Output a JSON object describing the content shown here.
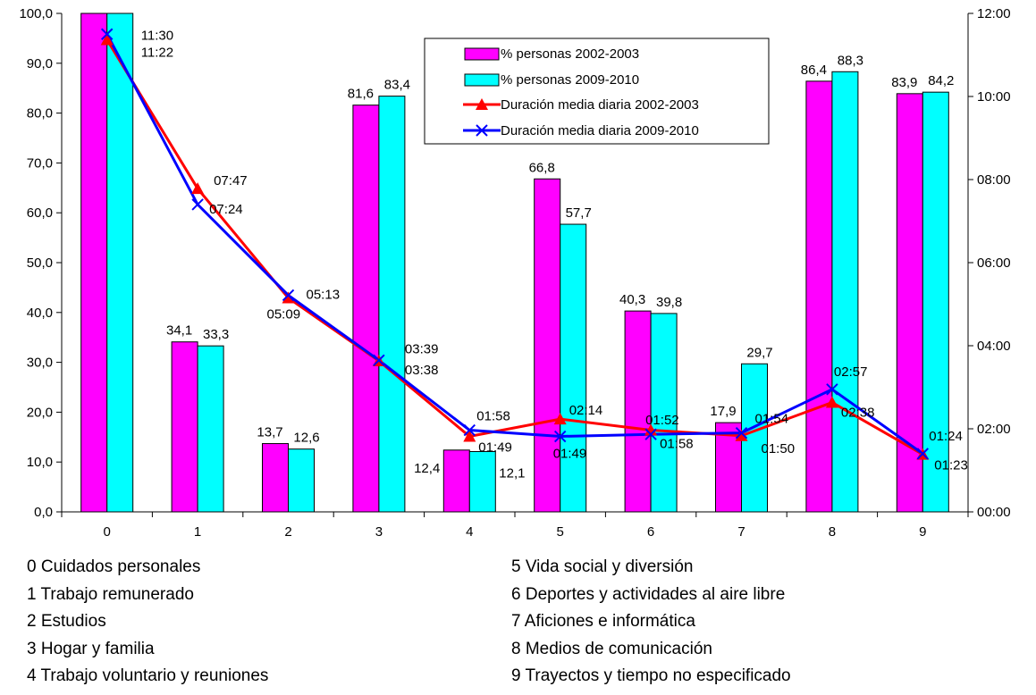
{
  "chart_data": {
    "type": "bar",
    "categories": [
      "0",
      "1",
      "2",
      "3",
      "4",
      "5",
      "6",
      "7",
      "8",
      "9"
    ],
    "category_descriptions": [
      "0 Cuidados personales",
      "1 Trabajo remunerado",
      "2 Estudios",
      "3 Hogar y familia",
      "4 Trabajo voluntario y reuniones",
      "5 Vida social y diversión",
      "6 Deportes y actividades al aire libre",
      "7 Aficiones e informática",
      "8 Medios de comunicación",
      "9 Trayectos y tiempo no especificado"
    ],
    "series": [
      {
        "name": "% personas 2002-2003",
        "type": "bar",
        "color": "#ff00ff",
        "values": [
          100.0,
          34.1,
          13.7,
          81.6,
          12.4,
          66.8,
          40.3,
          17.9,
          86.4,
          83.9
        ],
        "labels": [
          "",
          "34,1",
          "13,7",
          "81,6",
          "12,4",
          "66,8",
          "40,3",
          "17,9",
          "86,4",
          "83,9"
        ]
      },
      {
        "name": "% personas 2009-2010",
        "type": "bar",
        "color": "#00ffff",
        "values": [
          100.0,
          33.3,
          12.6,
          83.4,
          12.1,
          57.7,
          39.8,
          29.7,
          88.3,
          84.2
        ],
        "labels": [
          "",
          "33,3",
          "12,6",
          "83,4",
          "12,1",
          "57,7",
          "39,8",
          "29,7",
          "88,3",
          "84,2"
        ]
      },
      {
        "name": "Duración media diaria 2002-2003",
        "type": "line",
        "axis": "right",
        "color": "#ff0000",
        "marker": "triangle",
        "values": [
          "11:22",
          "07:47",
          "05:09",
          "03:38",
          "01:49",
          "02:14",
          "01:58",
          "01:50",
          "02:38",
          "01:23"
        ]
      },
      {
        "name": "Duración media diaria 2009-2010",
        "type": "line",
        "axis": "right",
        "color": "#0000ff",
        "marker": "x",
        "values": [
          "11:30",
          "07:24",
          "05:13",
          "03:39",
          "01:58",
          "01:49",
          "01:52",
          "01:54",
          "02:57",
          "01:24"
        ]
      }
    ],
    "y_left": {
      "ylim": [
        0,
        100
      ],
      "ticks": [
        "0,0",
        "10,0",
        "20,0",
        "30,0",
        "40,0",
        "50,0",
        "60,0",
        "70,0",
        "80,0",
        "90,0",
        "100,0"
      ]
    },
    "y_right": {
      "ylim": [
        "00:00",
        "12:00"
      ],
      "ticks": [
        "00:00",
        "02:00",
        "04:00",
        "06:00",
        "08:00",
        "10:00",
        "12:00"
      ]
    },
    "legend_position": "top-right",
    "grid": false,
    "title": "",
    "xlabel": "",
    "ylabel": ""
  }
}
